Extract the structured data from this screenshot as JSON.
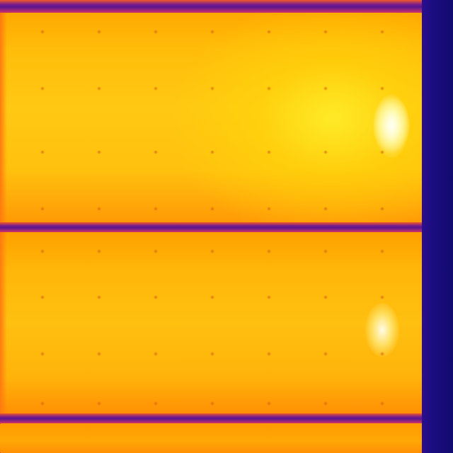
{
  "scene": {
    "kind": "thermal-image",
    "palette": "iron",
    "colors": {
      "cold": "#110a6e",
      "frame": "#7a1c8c",
      "warm": "#ffa800",
      "hot": "#ffc813",
      "hotspot": "#fffef0"
    }
  },
  "panels": [
    {
      "label": "",
      "has_hotspot": true
    },
    {
      "label": "",
      "has_hotspot": true
    },
    {
      "label": "",
      "has_hotspot": false
    }
  ]
}
